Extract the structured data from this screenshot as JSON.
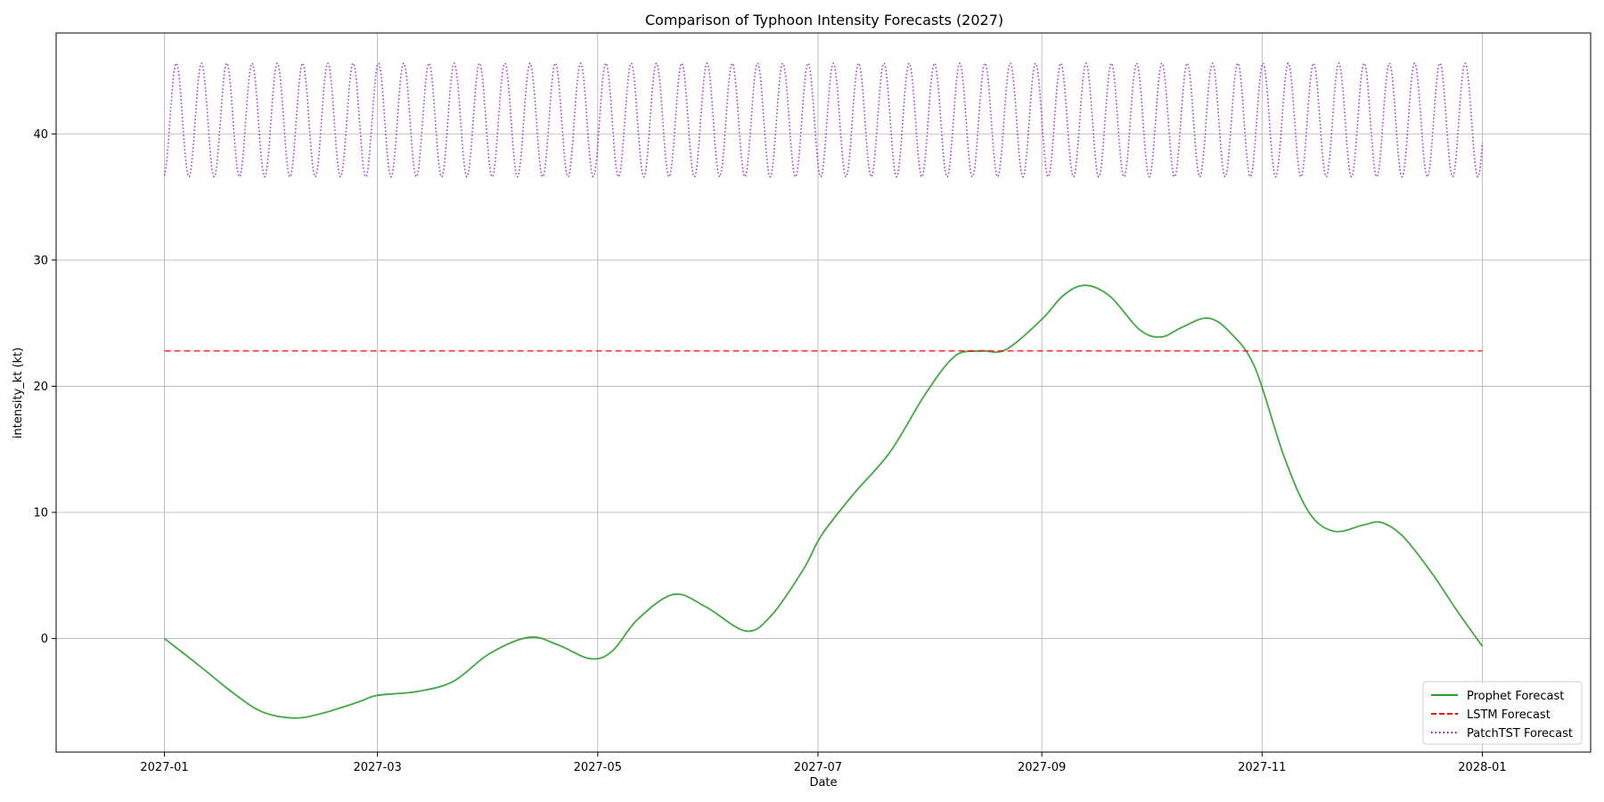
{
  "chart_data": {
    "type": "line",
    "title": "Comparison of Typhoon Intensity Forecasts (2027)",
    "xlabel": "Date",
    "ylabel": "intensity_kt (kt)",
    "xlim": [
      "2026-12-02",
      "2028-01-31"
    ],
    "ylim": [
      -9,
      48
    ],
    "x_ticks": [
      "2027-01",
      "2027-03",
      "2027-05",
      "2027-07",
      "2027-09",
      "2027-11",
      "2028-01"
    ],
    "y_ticks": [
      0,
      10,
      20,
      30,
      40
    ],
    "grid": true,
    "legend_position": "bottom-right",
    "colors": {
      "prophet": "#2ca02c",
      "lstm": "#ff0000",
      "patchtst": "#9400d3"
    },
    "series": [
      {
        "name": "Prophet Forecast",
        "color": "#2ca02c",
        "style": "solid",
        "x": [
          "2027-01-01",
          "2027-01-10",
          "2027-01-20",
          "2027-01-28",
          "2027-02-06",
          "2027-02-14",
          "2027-02-24",
          "2027-03-01",
          "2027-03-12",
          "2027-03-22",
          "2027-04-01",
          "2027-04-12",
          "2027-04-20",
          "2027-04-29",
          "2027-05-05",
          "2027-05-12",
          "2027-05-22",
          "2027-05-31",
          "2027-06-11",
          "2027-06-18",
          "2027-06-27",
          "2027-07-02",
          "2027-07-11",
          "2027-07-21",
          "2027-07-31",
          "2027-08-08",
          "2027-08-15",
          "2027-08-22",
          "2027-09-01",
          "2027-09-07",
          "2027-09-13",
          "2027-09-20",
          "2027-09-28",
          "2027-10-04",
          "2027-10-10",
          "2027-10-17",
          "2027-10-23",
          "2027-10-30",
          "2027-11-07",
          "2027-11-14",
          "2027-11-21",
          "2027-11-29",
          "2027-12-04",
          "2027-12-10",
          "2027-12-18",
          "2027-12-25",
          "2028-01-01"
        ],
        "values": [
          0,
          -2,
          -4.3,
          -5.8,
          -6.3,
          -5.9,
          -5,
          -4.5,
          -4.2,
          -3.4,
          -1.2,
          0.1,
          -0.5,
          -1.6,
          -1,
          1.5,
          3.5,
          2.5,
          0.6,
          1.8,
          5.5,
          8.2,
          11.5,
          14.8,
          19.5,
          22.4,
          22.8,
          22.9,
          25.3,
          27.2,
          28,
          27.1,
          24.5,
          23.9,
          24.7,
          25.4,
          24.3,
          21.5,
          14.5,
          10,
          8.5,
          9,
          9.2,
          8.1,
          5.2,
          2.2,
          -0.6
        ]
      },
      {
        "name": "LSTM Forecast",
        "color": "#ff0000",
        "style": "dashed",
        "x": [
          "2027-01-01",
          "2028-01-01"
        ],
        "values": [
          22.8,
          22.8
        ]
      },
      {
        "name": "PatchTST Forecast",
        "color": "#9400d3",
        "style": "dotted",
        "x_start": "2027-01-01",
        "x_end": "2028-01-01",
        "period_days": 7,
        "min": 36.6,
        "max": 45.6,
        "start_value": 36.7,
        "end_value": 39.3
      }
    ]
  }
}
